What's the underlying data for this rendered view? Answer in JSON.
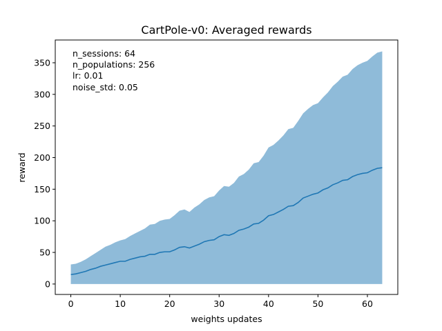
{
  "chart_data": {
    "type": "area",
    "title": "CartPole-v0: Averaged rewards",
    "xlabel": "weights updates",
    "ylabel": "reward",
    "xlim": [
      -3.15,
      66.15
    ],
    "ylim": [
      -16.5,
      386
    ],
    "xticks": [
      0,
      10,
      20,
      30,
      40,
      50,
      60
    ],
    "yticks": [
      0,
      50,
      100,
      150,
      200,
      250,
      300,
      350
    ],
    "grid": false,
    "annotation_lines": [
      "n_sessions: 64",
      "n_populations: 256",
      "lr: 0.01",
      "noise_std: 0.05"
    ],
    "x": [
      0,
      1,
      2,
      3,
      4,
      5,
      6,
      7,
      8,
      9,
      10,
      11,
      12,
      13,
      14,
      15,
      16,
      17,
      18,
      19,
      20,
      21,
      22,
      23,
      24,
      25,
      26,
      27,
      28,
      29,
      30,
      31,
      32,
      33,
      34,
      35,
      36,
      37,
      38,
      39,
      40,
      41,
      42,
      43,
      44,
      45,
      46,
      47,
      48,
      49,
      50,
      51,
      52,
      53,
      54,
      55,
      56,
      57,
      58,
      59,
      60,
      61,
      62,
      63
    ],
    "series": [
      {
        "values": [
          15,
          16,
          18,
          20,
          23,
          25,
          28,
          30,
          32,
          34,
          36,
          36,
          39,
          41,
          43,
          44,
          47,
          47,
          50,
          51,
          51,
          54,
          58,
          59,
          57,
          60,
          63,
          67,
          69,
          70,
          75,
          78,
          77,
          80,
          85,
          87,
          90,
          95,
          96,
          101,
          108,
          110,
          114,
          118,
          123,
          124,
          129,
          136,
          139,
          142,
          144,
          149,
          152,
          157,
          160,
          164,
          165,
          170,
          173,
          175,
          176,
          180,
          183,
          184
        ],
        "lower": [
          0,
          0,
          0,
          0,
          0,
          0,
          0,
          0,
          0,
          0,
          0,
          0,
          0,
          0,
          0,
          0,
          0,
          0,
          0,
          0,
          0,
          0,
          0,
          0,
          0,
          0,
          0,
          0,
          0,
          0,
          0,
          0,
          0,
          0,
          0,
          0,
          0,
          0,
          0,
          0,
          0,
          0,
          0,
          0,
          0,
          0,
          0,
          0,
          0,
          0,
          0,
          0,
          0,
          0,
          0,
          0,
          0,
          0,
          0,
          0,
          0,
          0,
          0,
          0
        ],
        "upper": [
          31,
          32,
          35,
          39,
          44,
          49,
          54,
          59,
          62,
          66,
          69,
          71,
          76,
          80,
          84,
          88,
          94,
          95,
          100,
          102,
          103,
          109,
          116,
          118,
          114,
          121,
          126,
          133,
          137,
          139,
          148,
          155,
          154,
          160,
          170,
          174,
          181,
          191,
          193,
          203,
          216,
          220,
          227,
          235,
          245,
          247,
          258,
          270,
          277,
          283,
          286,
          295,
          303,
          313,
          320,
          328,
          331,
          340,
          346,
          350,
          353,
          360,
          366,
          368
        ]
      }
    ],
    "colors": {
      "line": "#1f77b4",
      "fill": "#1f77b4",
      "fill_opacity": 0.5
    }
  }
}
